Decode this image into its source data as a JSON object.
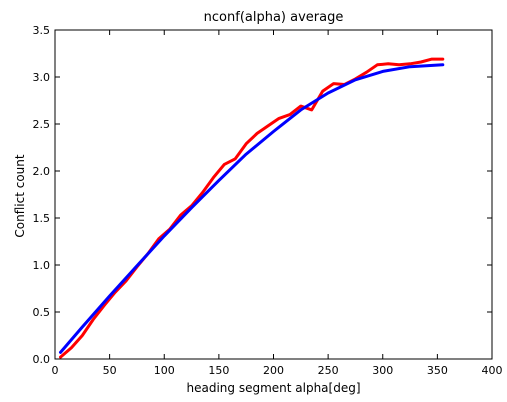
{
  "chart_data": {
    "type": "line",
    "title": "nconf(alpha) average",
    "xlabel": "heading segment alpha[deg]",
    "ylabel": "Conflict count",
    "xlim": [
      0,
      400
    ],
    "ylim": [
      0.0,
      3.5
    ],
    "grid": false,
    "x_ticks": [
      "0",
      "50",
      "100",
      "150",
      "200",
      "250",
      "300",
      "350",
      "400"
    ],
    "y_ticks": [
      "0.0",
      "0.5",
      "1.0",
      "1.5",
      "2.0",
      "2.5",
      "3.0",
      "3.5"
    ],
    "series": [
      {
        "color": "#ff0000",
        "x": [
          5,
          15,
          25,
          35,
          45,
          55,
          65,
          75,
          85,
          95,
          105,
          115,
          125,
          135,
          145,
          155,
          165,
          175,
          185,
          195,
          205,
          215,
          225,
          235,
          245,
          255,
          265,
          275,
          285,
          295,
          305,
          315,
          325,
          335,
          345,
          355
        ],
        "y": [
          0.02,
          0.12,
          0.25,
          0.42,
          0.57,
          0.71,
          0.83,
          0.98,
          1.12,
          1.28,
          1.38,
          1.53,
          1.63,
          1.77,
          1.93,
          2.07,
          2.13,
          2.29,
          2.4,
          2.48,
          2.56,
          2.6,
          2.69,
          2.65,
          2.85,
          2.93,
          2.92,
          2.98,
          3.05,
          3.13,
          3.14,
          3.13,
          3.14,
          3.16,
          3.19,
          3.19
        ]
      },
      {
        "color": "#0000ff",
        "x": [
          5,
          25,
          50,
          75,
          100,
          125,
          150,
          175,
          200,
          225,
          250,
          275,
          300,
          325,
          355
        ],
        "y": [
          0.07,
          0.34,
          0.67,
          0.99,
          1.31,
          1.61,
          1.9,
          2.18,
          2.42,
          2.65,
          2.83,
          2.97,
          3.06,
          3.11,
          3.13
        ]
      }
    ]
  }
}
